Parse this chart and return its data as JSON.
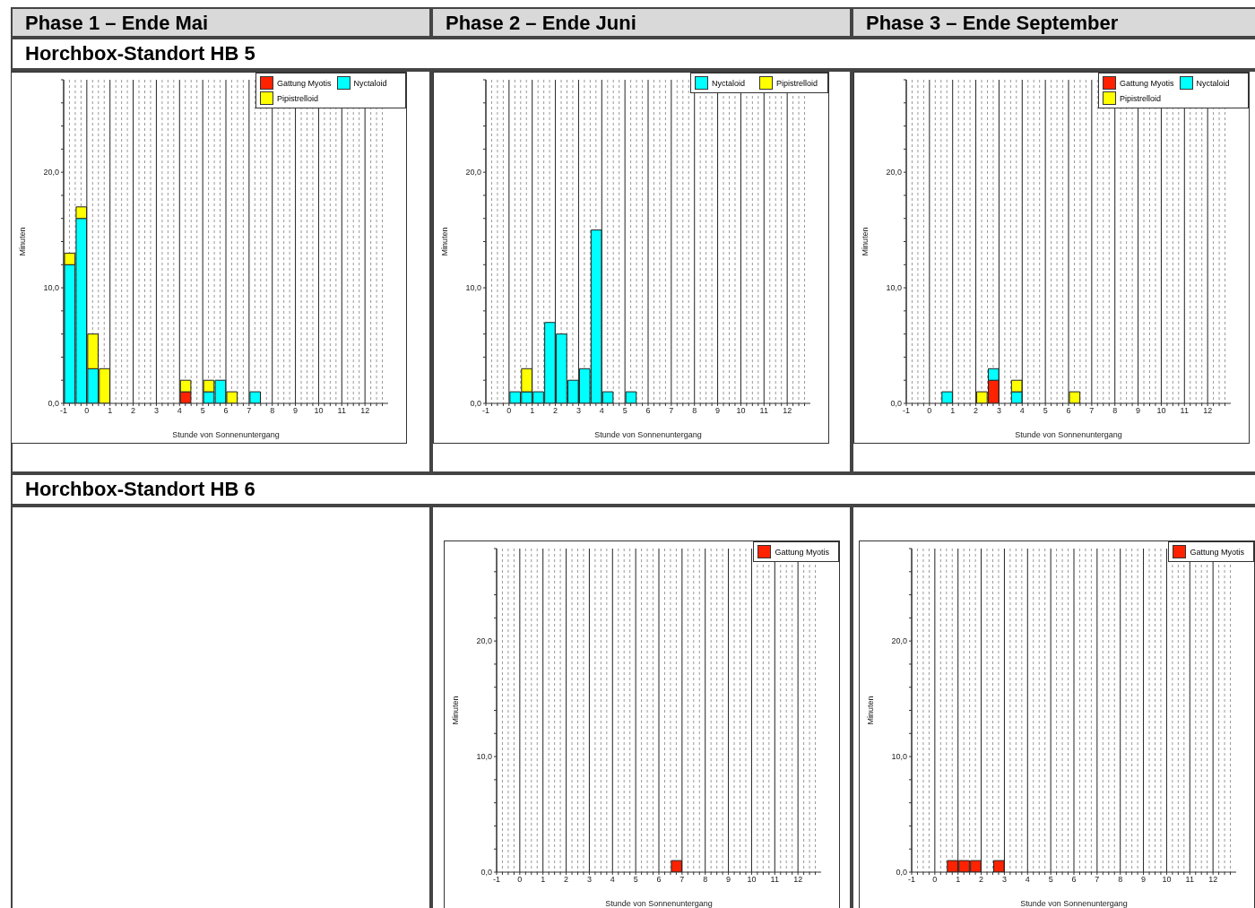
{
  "chart_data": [
    {
      "type": "other",
      "annotations": [
        "Phase 1 – Ende Mai",
        "Phase 2 – Ende Juni",
        "Phase 3 – Ende September",
        "Horchbox-Standort HB 5",
        "Horchbox-Standort HB 6"
      ]
    },
    {
      "type": "bar",
      "xlabel": "Stunde von Sonnenuntergang",
      "ylabel": "Minuten",
      "stacked": true,
      "legend": "top right",
      "grid": "x",
      "x": [
        -0.75,
        -0.25,
        0.25,
        0.75,
        1.25,
        1.75,
        2.25,
        2.75,
        3.25,
        3.75,
        4.25,
        4.75,
        5.25,
        5.75,
        6.25,
        6.75,
        7.25,
        7.75,
        8.25,
        8.75,
        9.25,
        9.75,
        10.25,
        10.75,
        11.25,
        11.75,
        12.25,
        12.75
      ],
      "xlim": [
        -1,
        13
      ],
      "ylim": [
        0,
        28
      ],
      "xticks": [
        -1,
        {
          "value": -0.75,
          "label": null
        },
        {
          "value": -0.5,
          "label": null
        },
        {
          "value": -0.25,
          "label": null
        },
        0,
        {
          "value": 0.25,
          "label": null
        },
        {
          "value": 0.5,
          "label": null
        },
        {
          "value": 0.75,
          "label": null
        },
        1,
        {
          "value": 1.25,
          "label": null
        },
        {
          "value": 1.5,
          "label": null
        },
        {
          "value": 1.75,
          "label": null
        },
        2,
        {
          "value": 2.25,
          "label": null
        },
        {
          "value": 2.5,
          "label": null
        },
        {
          "value": 2.75,
          "label": null
        },
        3,
        {
          "value": 3.25,
          "label": null
        },
        {
          "value": 3.5,
          "label": null
        },
        {
          "value": 3.75,
          "label": null
        },
        4,
        {
          "value": 4.25,
          "label": null
        },
        {
          "value": 4.5,
          "label": null
        },
        {
          "value": 4.75,
          "label": null
        },
        5,
        {
          "value": 5.25,
          "label": null
        },
        {
          "value": 5.5,
          "label": null
        },
        {
          "value": 5.75,
          "label": null
        },
        6,
        {
          "value": 6.25,
          "label": null
        },
        {
          "value": 6.5,
          "label": null
        },
        {
          "value": 6.75,
          "label": null
        },
        7,
        {
          "value": 7.25,
          "label": null
        },
        {
          "value": 7.5,
          "label": null
        },
        {
          "value": 7.75,
          "label": null
        },
        8,
        {
          "value": 8.25,
          "label": null
        },
        {
          "value": 8.5,
          "label": null
        },
        {
          "value": 8.75,
          "label": null
        },
        9,
        {
          "value": 9.25,
          "label": null
        },
        {
          "value": 9.5,
          "label": null
        },
        {
          "value": 9.75,
          "label": null
        },
        10,
        {
          "value": 10.25,
          "label": null
        },
        {
          "value": 10.5,
          "label": null
        },
        {
          "value": 10.75,
          "label": null
        },
        11,
        {
          "value": 11.25,
          "label": null
        },
        {
          "value": 11.5,
          "label": null
        },
        {
          "value": 11.75,
          "label": null
        },
        12,
        {
          "value": 12.25,
          "label": null
        },
        {
          "value": 12.5,
          "label": null
        },
        {
          "value": 12.75,
          "label": null
        }
      ],
      "yticks": [
        {
          "value": 0,
          "label": "0,0"
        },
        {
          "value": 2,
          "label": null
        },
        {
          "value": 4,
          "label": null
        },
        {
          "value": 6,
          "label": null
        },
        {
          "value": 8,
          "label": null
        },
        {
          "value": 10,
          "label": "10,0"
        },
        {
          "value": 12,
          "label": null
        },
        {
          "value": 14,
          "label": null
        },
        {
          "value": 16,
          "label": null
        },
        {
          "value": 18,
          "label": null
        },
        {
          "value": 20,
          "label": "20,0"
        },
        {
          "value": 22,
          "label": null
        },
        {
          "value": 24,
          "label": null
        },
        {
          "value": 26,
          "label": null
        },
        {
          "value": 28,
          "label": null
        }
      ],
      "series": [
        {
          "name": "Gattung Myotis",
          "color": "#ff2200",
          "values": [
            0,
            0,
            0,
            0,
            0,
            0,
            0,
            0,
            0,
            0,
            1,
            0,
            0,
            0,
            0,
            0,
            0,
            0,
            0,
            0,
            0,
            0,
            0,
            0,
            0,
            0,
            0,
            0
          ]
        },
        {
          "name": "Nyctaloid",
          "color": "#00ffff",
          "values": [
            12,
            16,
            3,
            0,
            0,
            0,
            0,
            0,
            0,
            0,
            0,
            0,
            1,
            2,
            0,
            0,
            1,
            0,
            0,
            0,
            0,
            0,
            0,
            0,
            0,
            0,
            0,
            0
          ]
        },
        {
          "name": "Pipistrelloid",
          "color": "#ffff00",
          "values": [
            1,
            1,
            3,
            3,
            0,
            0,
            0,
            0,
            0,
            0,
            1,
            0,
            1,
            0,
            1,
            0,
            0,
            0,
            0,
            0,
            0,
            0,
            0,
            0,
            0,
            0,
            0,
            0
          ]
        }
      ]
    },
    {
      "type": "bar",
      "xlabel": "Stunde von Sonnenuntergang",
      "ylabel": "Minuten",
      "stacked": true,
      "legend": "top right",
      "grid": "x",
      "x": [
        -0.75,
        -0.25,
        0.25,
        0.75,
        1.25,
        1.75,
        2.25,
        2.75,
        3.25,
        3.75,
        4.25,
        4.75,
        5.25,
        5.75,
        6.25,
        6.75,
        7.25,
        7.75,
        8.25,
        8.75,
        9.25,
        9.75,
        10.25,
        10.75,
        11.25,
        11.75,
        12.25,
        12.75
      ],
      "xlim": [
        -1,
        13
      ],
      "ylim": [
        0,
        28
      ],
      "xticks": [
        -1,
        {
          "value": -0.75,
          "label": null
        },
        {
          "value": -0.5,
          "label": null
        },
        {
          "value": -0.25,
          "label": null
        },
        0,
        {
          "value": 0.25,
          "label": null
        },
        {
          "value": 0.5,
          "label": null
        },
        {
          "value": 0.75,
          "label": null
        },
        1,
        {
          "value": 1.25,
          "label": null
        },
        {
          "value": 1.5,
          "label": null
        },
        {
          "value": 1.75,
          "label": null
        },
        2,
        {
          "value": 2.25,
          "label": null
        },
        {
          "value": 2.5,
          "label": null
        },
        {
          "value": 2.75,
          "label": null
        },
        3,
        {
          "value": 3.25,
          "label": null
        },
        {
          "value": 3.5,
          "label": null
        },
        {
          "value": 3.75,
          "label": null
        },
        4,
        {
          "value": 4.25,
          "label": null
        },
        {
          "value": 4.5,
          "label": null
        },
        {
          "value": 4.75,
          "label": null
        },
        5,
        {
          "value": 5.25,
          "label": null
        },
        {
          "value": 5.5,
          "label": null
        },
        {
          "value": 5.75,
          "label": null
        },
        6,
        {
          "value": 6.25,
          "label": null
        },
        {
          "value": 6.5,
          "label": null
        },
        {
          "value": 6.75,
          "label": null
        },
        7,
        {
          "value": 7.25,
          "label": null
        },
        {
          "value": 7.5,
          "label": null
        },
        {
          "value": 7.75,
          "label": null
        },
        8,
        {
          "value": 8.25,
          "label": null
        },
        {
          "value": 8.5,
          "label": null
        },
        {
          "value": 8.75,
          "label": null
        },
        9,
        {
          "value": 9.25,
          "label": null
        },
        {
          "value": 9.5,
          "label": null
        },
        {
          "value": 9.75,
          "label": null
        },
        10,
        {
          "value": 10.25,
          "label": null
        },
        {
          "value": 10.5,
          "label": null
        },
        {
          "value": 10.75,
          "label": null
        },
        11,
        {
          "value": 11.25,
          "label": null
        },
        {
          "value": 11.5,
          "label": null
        },
        {
          "value": 11.75,
          "label": null
        },
        12,
        {
          "value": 12.25,
          "label": null
        },
        {
          "value": 12.5,
          "label": null
        },
        {
          "value": 12.75,
          "label": null
        }
      ],
      "yticks": [
        {
          "value": 0,
          "label": "0,0"
        },
        {
          "value": 2,
          "label": null
        },
        {
          "value": 4,
          "label": null
        },
        {
          "value": 6,
          "label": null
        },
        {
          "value": 8,
          "label": null
        },
        {
          "value": 10,
          "label": "10,0"
        },
        {
          "value": 12,
          "label": null
        },
        {
          "value": 14,
          "label": null
        },
        {
          "value": 16,
          "label": null
        },
        {
          "value": 18,
          "label": null
        },
        {
          "value": 20,
          "label": "20,0"
        },
        {
          "value": 22,
          "label": null
        },
        {
          "value": 24,
          "label": null
        },
        {
          "value": 26,
          "label": null
        },
        {
          "value": 28,
          "label": null
        }
      ],
      "series": [
        {
          "name": "Nyctaloid",
          "color": "#00ffff",
          "values": [
            0,
            0,
            1,
            1,
            1,
            7,
            6,
            2,
            3,
            15,
            1,
            0,
            1,
            0,
            0,
            0,
            0,
            0,
            0,
            0,
            0,
            0,
            0,
            0,
            0,
            0,
            0,
            0
          ]
        },
        {
          "name": "Pipistrelloid",
          "color": "#ffff00",
          "values": [
            0,
            0,
            0,
            2,
            0,
            0,
            0,
            0,
            0,
            0,
            0,
            0,
            0,
            0,
            0,
            0,
            0,
            0,
            0,
            0,
            0,
            0,
            0,
            0,
            0,
            0,
            0,
            0
          ]
        }
      ]
    },
    {
      "type": "bar",
      "xlabel": "Stunde von Sonnenuntergang",
      "ylabel": "Minuten",
      "stacked": true,
      "legend": "top right",
      "grid": "x",
      "x": [
        -0.75,
        -0.25,
        0.25,
        0.75,
        1.25,
        1.75,
        2.25,
        2.75,
        3.25,
        3.75,
        4.25,
        4.75,
        5.25,
        5.75,
        6.25,
        6.75,
        7.25,
        7.75,
        8.25,
        8.75,
        9.25,
        9.75,
        10.25,
        10.75,
        11.25,
        11.75,
        12.25,
        12.75
      ],
      "xlim": [
        -1,
        13
      ],
      "ylim": [
        0,
        28
      ],
      "xticks": [
        -1,
        {
          "value": -0.75,
          "label": null
        },
        {
          "value": -0.5,
          "label": null
        },
        {
          "value": -0.25,
          "label": null
        },
        0,
        {
          "value": 0.25,
          "label": null
        },
        {
          "value": 0.5,
          "label": null
        },
        {
          "value": 0.75,
          "label": null
        },
        1,
        {
          "value": 1.25,
          "label": null
        },
        {
          "value": 1.5,
          "label": null
        },
        {
          "value": 1.75,
          "label": null
        },
        2,
        {
          "value": 2.25,
          "label": null
        },
        {
          "value": 2.5,
          "label": null
        },
        {
          "value": 2.75,
          "label": null
        },
        3,
        {
          "value": 3.25,
          "label": null
        },
        {
          "value": 3.5,
          "label": null
        },
        {
          "value": 3.75,
          "label": null
        },
        4,
        {
          "value": 4.25,
          "label": null
        },
        {
          "value": 4.5,
          "label": null
        },
        {
          "value": 4.75,
          "label": null
        },
        5,
        {
          "value": 5.25,
          "label": null
        },
        {
          "value": 5.5,
          "label": null
        },
        {
          "value": 5.75,
          "label": null
        },
        6,
        {
          "value": 6.25,
          "label": null
        },
        {
          "value": 6.5,
          "label": null
        },
        {
          "value": 6.75,
          "label": null
        },
        7,
        {
          "value": 7.25,
          "label": null
        },
        {
          "value": 7.5,
          "label": null
        },
        {
          "value": 7.75,
          "label": null
        },
        8,
        {
          "value": 8.25,
          "label": null
        },
        {
          "value": 8.5,
          "label": null
        },
        {
          "value": 8.75,
          "label": null
        },
        9,
        {
          "value": 9.25,
          "label": null
        },
        {
          "value": 9.5,
          "label": null
        },
        {
          "value": 9.75,
          "label": null
        },
        10,
        {
          "value": 10.25,
          "label": null
        },
        {
          "value": 10.5,
          "label": null
        },
        {
          "value": 10.75,
          "label": null
        },
        11,
        {
          "value": 11.25,
          "label": null
        },
        {
          "value": 11.5,
          "label": null
        },
        {
          "value": 11.75,
          "label": null
        },
        12,
        {
          "value": 12.25,
          "label": null
        },
        {
          "value": 12.5,
          "label": null
        },
        {
          "value": 12.75,
          "label": null
        }
      ],
      "yticks": [
        {
          "value": 0,
          "label": "0,0"
        },
        {
          "value": 2,
          "label": null
        },
        {
          "value": 4,
          "label": null
        },
        {
          "value": 6,
          "label": null
        },
        {
          "value": 8,
          "label": null
        },
        {
          "value": 10,
          "label": "10,0"
        },
        {
          "value": 12,
          "label": null
        },
        {
          "value": 14,
          "label": null
        },
        {
          "value": 16,
          "label": null
        },
        {
          "value": 18,
          "label": null
        },
        {
          "value": 20,
          "label": "20,0"
        },
        {
          "value": 22,
          "label": null
        },
        {
          "value": 24,
          "label": null
        },
        {
          "value": 26,
          "label": null
        },
        {
          "value": 28,
          "label": null
        }
      ],
      "series": [
        {
          "name": "Gattung Myotis",
          "color": "#ff2200",
          "values": [
            0,
            0,
            0,
            0,
            0,
            0,
            0,
            2,
            0,
            0,
            0,
            0,
            0,
            0,
            0,
            0,
            0,
            0,
            0,
            0,
            0,
            0,
            0,
            0,
            0,
            0,
            0,
            0
          ]
        },
        {
          "name": "Nyctaloid",
          "color": "#00ffff",
          "values": [
            0,
            0,
            0,
            1,
            0,
            0,
            0,
            1,
            0,
            1,
            0,
            0,
            0,
            0,
            0,
            0,
            0,
            0,
            0,
            0,
            0,
            0,
            0,
            0,
            0,
            0,
            0,
            0
          ]
        },
        {
          "name": "Pipistrelloid",
          "color": "#ffff00",
          "values": [
            0,
            0,
            0,
            0,
            0,
            0,
            1,
            0,
            0,
            1,
            0,
            0,
            0,
            0,
            1,
            0,
            0,
            0,
            0,
            0,
            0,
            0,
            0,
            0,
            0,
            0,
            0,
            0
          ]
        }
      ]
    },
    {
      "type": "bar",
      "xlabel": "Stunde von Sonnenuntergang",
      "ylabel": "Minuten",
      "stacked": true,
      "legend": "top right",
      "grid": "x",
      "x": [
        -0.75,
        -0.25,
        0.25,
        0.75,
        1.25,
        1.75,
        2.25,
        2.75,
        3.25,
        3.75,
        4.25,
        4.75,
        5.25,
        5.75,
        6.25,
        6.75,
        7.25,
        7.75,
        8.25,
        8.75,
        9.25,
        9.75,
        10.25,
        10.75,
        11.25,
        11.75,
        12.25,
        12.75
      ],
      "xlim": [
        -1,
        13
      ],
      "ylim": [
        0,
        28
      ],
      "xticks": [
        -1,
        {
          "value": -0.75,
          "label": null
        },
        {
          "value": -0.5,
          "label": null
        },
        {
          "value": -0.25,
          "label": null
        },
        0,
        {
          "value": 0.25,
          "label": null
        },
        {
          "value": 0.5,
          "label": null
        },
        {
          "value": 0.75,
          "label": null
        },
        1,
        {
          "value": 1.25,
          "label": null
        },
        {
          "value": 1.5,
          "label": null
        },
        {
          "value": 1.75,
          "label": null
        },
        2,
        {
          "value": 2.25,
          "label": null
        },
        {
          "value": 2.5,
          "label": null
        },
        {
          "value": 2.75,
          "label": null
        },
        3,
        {
          "value": 3.25,
          "label": null
        },
        {
          "value": 3.5,
          "label": null
        },
        {
          "value": 3.75,
          "label": null
        },
        4,
        {
          "value": 4.25,
          "label": null
        },
        {
          "value": 4.5,
          "label": null
        },
        {
          "value": 4.75,
          "label": null
        },
        5,
        {
          "value": 5.25,
          "label": null
        },
        {
          "value": 5.5,
          "label": null
        },
        {
          "value": 5.75,
          "label": null
        },
        6,
        {
          "value": 6.25,
          "label": null
        },
        {
          "value": 6.5,
          "label": null
        },
        {
          "value": 6.75,
          "label": null
        },
        7,
        {
          "value": 7.25,
          "label": null
        },
        {
          "value": 7.5,
          "label": null
        },
        {
          "value": 7.75,
          "label": null
        },
        8,
        {
          "value": 8.25,
          "label": null
        },
        {
          "value": 8.5,
          "label": null
        },
        {
          "value": 8.75,
          "label": null
        },
        9,
        {
          "value": 9.25,
          "label": null
        },
        {
          "value": 9.5,
          "label": null
        },
        {
          "value": 9.75,
          "label": null
        },
        10,
        {
          "value": 10.25,
          "label": null
        },
        {
          "value": 10.5,
          "label": null
        },
        {
          "value": 10.75,
          "label": null
        },
        11,
        {
          "value": 11.25,
          "label": null
        },
        {
          "value": 11.5,
          "label": null
        },
        {
          "value": 11.75,
          "label": null
        },
        12,
        {
          "value": 12.25,
          "label": null
        },
        {
          "value": 12.5,
          "label": null
        },
        {
          "value": 12.75,
          "label": null
        }
      ],
      "yticks": [
        {
          "value": 0,
          "label": "0,0"
        },
        {
          "value": 2,
          "label": null
        },
        {
          "value": 4,
          "label": null
        },
        {
          "value": 6,
          "label": null
        },
        {
          "value": 8,
          "label": null
        },
        {
          "value": 10,
          "label": "10,0"
        },
        {
          "value": 12,
          "label": null
        },
        {
          "value": 14,
          "label": null
        },
        {
          "value": 16,
          "label": null
        },
        {
          "value": 18,
          "label": null
        },
        {
          "value": 20,
          "label": "20,0"
        },
        {
          "value": 22,
          "label": null
        },
        {
          "value": 24,
          "label": null
        },
        {
          "value": 26,
          "label": null
        },
        {
          "value": 28,
          "label": null
        }
      ],
      "series": [
        {
          "name": "Gattung Myotis",
          "color": "#ff2200",
          "values": [
            0,
            0,
            0,
            0,
            0,
            0,
            0,
            0,
            0,
            0,
            0,
            0,
            0,
            0,
            0,
            1,
            0,
            0,
            0,
            0,
            0,
            0,
            0,
            0,
            0,
            0,
            0,
            0
          ]
        }
      ]
    },
    {
      "type": "bar",
      "xlabel": "Stunde von Sonnenuntergang",
      "ylabel": "Minuten",
      "stacked": true,
      "legend": "top right",
      "grid": "x",
      "x": [
        -0.75,
        -0.25,
        0.25,
        0.75,
        1.25,
        1.75,
        2.25,
        2.75,
        3.25,
        3.75,
        4.25,
        4.75,
        5.25,
        5.75,
        6.25,
        6.75,
        7.25,
        7.75,
        8.25,
        8.75,
        9.25,
        9.75,
        10.25,
        10.75,
        11.25,
        11.75,
        12.25,
        12.75
      ],
      "xlim": [
        -1,
        13
      ],
      "ylim": [
        0,
        28
      ],
      "xticks": [
        -1,
        {
          "value": -0.75,
          "label": null
        },
        {
          "value": -0.5,
          "label": null
        },
        {
          "value": -0.25,
          "label": null
        },
        0,
        {
          "value": 0.25,
          "label": null
        },
        {
          "value": 0.5,
          "label": null
        },
        {
          "value": 0.75,
          "label": null
        },
        1,
        {
          "value": 1.25,
          "label": null
        },
        {
          "value": 1.5,
          "label": null
        },
        {
          "value": 1.75,
          "label": null
        },
        2,
        {
          "value": 2.25,
          "label": null
        },
        {
          "value": 2.5,
          "label": null
        },
        {
          "value": 2.75,
          "label": null
        },
        3,
        {
          "value": 3.25,
          "label": null
        },
        {
          "value": 3.5,
          "label": null
        },
        {
          "value": 3.75,
          "label": null
        },
        4,
        {
          "value": 4.25,
          "label": null
        },
        {
          "value": 4.5,
          "label": null
        },
        {
          "value": 4.75,
          "label": null
        },
        5,
        {
          "value": 5.25,
          "label": null
        },
        {
          "value": 5.5,
          "label": null
        },
        {
          "value": 5.75,
          "label": null
        },
        6,
        {
          "value": 6.25,
          "label": null
        },
        {
          "value": 6.5,
          "label": null
        },
        {
          "value": 6.75,
          "label": null
        },
        7,
        {
          "value": 7.25,
          "label": null
        },
        {
          "value": 7.5,
          "label": null
        },
        {
          "value": 7.75,
          "label": null
        },
        8,
        {
          "value": 8.25,
          "label": null
        },
        {
          "value": 8.5,
          "label": null
        },
        {
          "value": 8.75,
          "label": null
        },
        9,
        {
          "value": 9.25,
          "label": null
        },
        {
          "value": 9.5,
          "label": null
        },
        {
          "value": 9.75,
          "label": null
        },
        10,
        {
          "value": 10.25,
          "label": null
        },
        {
          "value": 10.5,
          "label": null
        },
        {
          "value": 10.75,
          "label": null
        },
        11,
        {
          "value": 11.25,
          "label": null
        },
        {
          "value": 11.5,
          "label": null
        },
        {
          "value": 11.75,
          "label": null
        },
        12,
        {
          "value": 12.25,
          "label": null
        },
        {
          "value": 12.5,
          "label": null
        },
        {
          "value": 12.75,
          "label": null
        }
      ],
      "yticks": [
        {
          "value": 0,
          "label": "0,0"
        },
        {
          "value": 2,
          "label": null
        },
        {
          "value": 4,
          "label": null
        },
        {
          "value": 6,
          "label": null
        },
        {
          "value": 8,
          "label": null
        },
        {
          "value": 10,
          "label": "10,0"
        },
        {
          "value": 12,
          "label": null
        },
        {
          "value": 14,
          "label": null
        },
        {
          "value": 16,
          "label": null
        },
        {
          "value": 18,
          "label": null
        },
        {
          "value": 20,
          "label": "20,0"
        },
        {
          "value": 22,
          "label": null
        },
        {
          "value": 24,
          "label": null
        },
        {
          "value": 26,
          "label": null
        },
        {
          "value": 28,
          "label": null
        }
      ],
      "series": [
        {
          "name": "Gattung Myotis",
          "color": "#ff2200",
          "values": [
            0,
            0,
            0,
            1,
            1,
            1,
            0,
            1,
            0,
            0,
            0,
            0,
            0,
            0,
            0,
            0,
            0,
            0,
            0,
            0,
            0,
            0,
            0,
            0,
            0,
            0,
            0,
            0
          ]
        }
      ]
    }
  ]
}
